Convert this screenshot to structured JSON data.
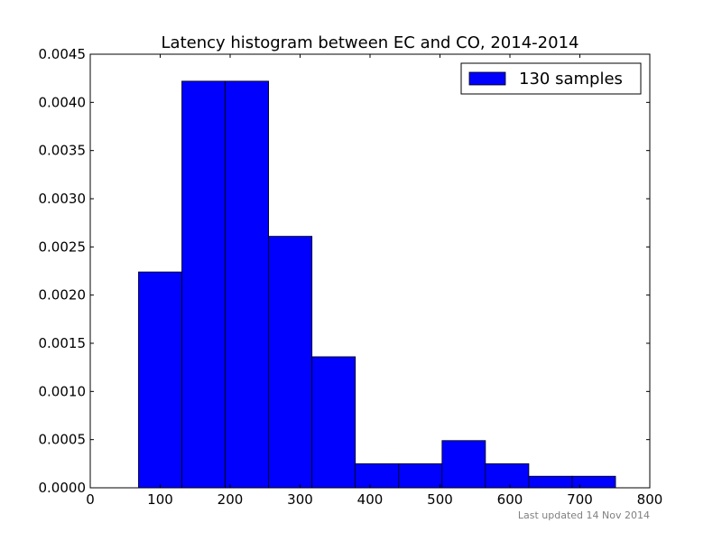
{
  "chart_data": {
    "type": "bar",
    "title": "Latency histogram between EC and CO, 2014-2014",
    "xlabel": "",
    "ylabel": "",
    "xlim": [
      0,
      800
    ],
    "ylim": [
      0,
      0.0045
    ],
    "x_ticks": [
      "0",
      "100",
      "200",
      "300",
      "400",
      "500",
      "600",
      "700",
      "800"
    ],
    "y_ticks": [
      "0.0000",
      "0.0005",
      "0.0010",
      "0.0015",
      "0.0020",
      "0.0025",
      "0.0030",
      "0.0035",
      "0.0040",
      "0.0045"
    ],
    "bin_edges": [
      69,
      131,
      193,
      255,
      317,
      379,
      441,
      503,
      565,
      627,
      689,
      751
    ],
    "values": [
      0.00224,
      0.00422,
      0.00422,
      0.00261,
      0.00136,
      0.00025,
      0.00025,
      0.00049,
      0.00025,
      0.00012,
      0.00012
    ],
    "grid": false,
    "bar_color": "#0000ff",
    "edge_color": "#000000",
    "legend": {
      "position": "top-right",
      "entries": [
        {
          "label": "130 samples",
          "color": "#0000ff"
        }
      ]
    }
  },
  "footer": {
    "updated": "Last updated 14 Nov 2014"
  }
}
